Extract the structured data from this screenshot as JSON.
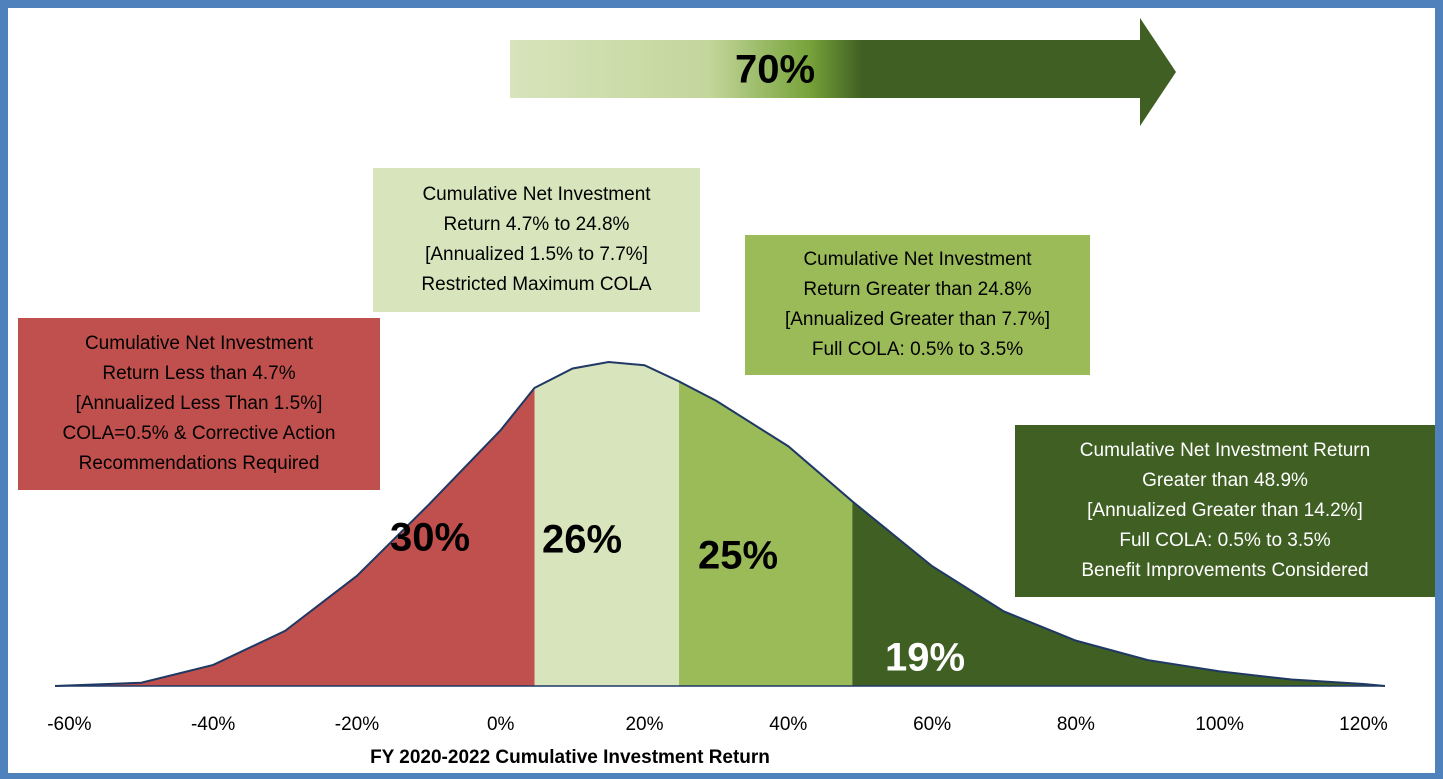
{
  "chart_data": {
    "type": "distribution",
    "x_label": "FY 2020-2022 Cumulative Investment Return",
    "xlim": [
      -62,
      123
    ],
    "xticks": [
      {
        "value": -60,
        "label": "-60%"
      },
      {
        "value": -40,
        "label": "-40%"
      },
      {
        "value": -20,
        "label": "-20%"
      },
      {
        "value": 0,
        "label": "0%"
      },
      {
        "value": 20,
        "label": "20%"
      },
      {
        "value": 40,
        "label": "40%"
      },
      {
        "value": 60,
        "label": "60%"
      },
      {
        "value": 80,
        "label": "80%"
      },
      {
        "value": 100,
        "label": "100%"
      },
      {
        "value": 120,
        "label": "120%"
      }
    ],
    "curve": {
      "color": "#1f3864",
      "x": [
        -62,
        -50,
        -40,
        -30,
        -20,
        -10,
        0,
        4.7,
        10,
        15,
        20,
        24.8,
        30,
        40,
        48.9,
        60,
        70,
        80,
        90,
        100,
        110,
        120,
        123
      ],
      "values": [
        0,
        0.01,
        0.065,
        0.17,
        0.34,
        0.56,
        0.79,
        0.92,
        0.98,
        1,
        0.99,
        0.94,
        0.88,
        0.74,
        0.57,
        0.37,
        0.23,
        0.14,
        0.08,
        0.045,
        0.02,
        0.006,
        0
      ]
    },
    "ylim": [
      0,
      1
    ],
    "boundaries": [
      4.7,
      24.8,
      48.9
    ],
    "values": [
      30,
      26,
      25,
      19
    ],
    "value_labels": [
      "30%",
      "26%",
      "25%",
      "19%"
    ],
    "colors": [
      "#c0504d",
      "#d7e4bc",
      "#9bbb59",
      "#3f5f23"
    ],
    "arrow": {
      "value": 70,
      "label": "70%"
    },
    "annotations": [
      {
        "color": "#c0504d",
        "lines": [
          "Cumulative Net Investment",
          "Return Less than 4.7%",
          "[Annualized Less Than 1.5%]",
          "COLA=0.5% & Corrective Action",
          "Recommendations Required"
        ]
      },
      {
        "color": "#d7e4bc",
        "lines": [
          "Cumulative Net Investment",
          "Return 4.7% to 24.8%",
          "[Annualized 1.5% to 7.7%]",
          "Restricted Maximum COLA"
        ]
      },
      {
        "color": "#9bbb59",
        "lines": [
          "Cumulative Net Investment",
          "Return Greater than 24.8%",
          "[Annualized Greater than 7.7%]",
          "Full COLA: 0.5% to 3.5%"
        ]
      },
      {
        "color": "#3f5f23",
        "lines": [
          "Cumulative Net Investment Return",
          "Greater than 48.9%",
          "[Annualized Greater than 14.2%]",
          "Full COLA: 0.5% to 3.5%",
          "Benefit Improvements Considered"
        ]
      }
    ]
  }
}
